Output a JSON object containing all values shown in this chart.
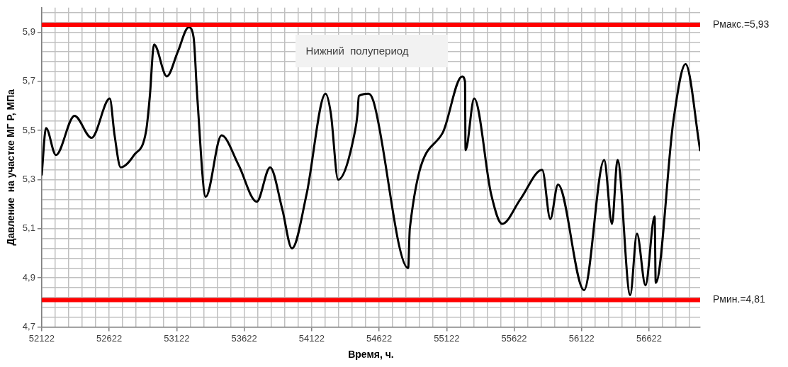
{
  "chart_data": {
    "type": "line",
    "xlabel": "Время, ч.",
    "ylabel": "Давление  на участке МГ Р, МПа",
    "annotations": [
      "Нижний  полупериод"
    ],
    "legend": false,
    "grid": true,
    "marker": "none",
    "line_style": "solid",
    "xlim": [
      52122,
      57000
    ],
    "ylim": [
      4.7,
      6.0
    ],
    "xticks": [
      52122,
      {
        "value": 52222,
        "label": null
      },
      {
        "value": 52322,
        "label": null
      },
      {
        "value": 52422,
        "label": null
      },
      {
        "value": 52522,
        "label": null
      },
      52622,
      {
        "value": 52722,
        "label": null
      },
      {
        "value": 52822,
        "label": null
      },
      {
        "value": 52922,
        "label": null
      },
      {
        "value": 53022,
        "label": null
      },
      53122,
      {
        "value": 53222,
        "label": null
      },
      {
        "value": 53322,
        "label": null
      },
      {
        "value": 53422,
        "label": null
      },
      {
        "value": 53522,
        "label": null
      },
      53622,
      {
        "value": 53722,
        "label": null
      },
      {
        "value": 53822,
        "label": null
      },
      {
        "value": 53922,
        "label": null
      },
      {
        "value": 54022,
        "label": null
      },
      54122,
      {
        "value": 54222,
        "label": null
      },
      {
        "value": 54322,
        "label": null
      },
      {
        "value": 54422,
        "label": null
      },
      {
        "value": 54522,
        "label": null
      },
      54622,
      {
        "value": 54722,
        "label": null
      },
      {
        "value": 54822,
        "label": null
      },
      {
        "value": 54922,
        "label": null
      },
      {
        "value": 55022,
        "label": null
      },
      55122,
      {
        "value": 55222,
        "label": null
      },
      {
        "value": 55322,
        "label": null
      },
      {
        "value": 55422,
        "label": null
      },
      {
        "value": 55522,
        "label": null
      },
      55622,
      {
        "value": 55722,
        "label": null
      },
      {
        "value": 55822,
        "label": null
      },
      {
        "value": 55922,
        "label": null
      },
      {
        "value": 56022,
        "label": null
      },
      56122,
      {
        "value": 56222,
        "label": null
      },
      {
        "value": 56322,
        "label": null
      },
      {
        "value": 56422,
        "label": null
      },
      {
        "value": 56522,
        "label": null
      },
      56622,
      {
        "value": 56722,
        "label": null
      },
      {
        "value": 56822,
        "label": null
      },
      {
        "value": 56922,
        "label": null
      }
    ],
    "yticks": [
      {
        "value": 4.7,
        "label": "4,7"
      },
      {
        "value": 4.74,
        "label": null
      },
      {
        "value": 4.78,
        "label": null
      },
      {
        "value": 4.82,
        "label": null
      },
      {
        "value": 4.86,
        "label": null
      },
      {
        "value": 4.9,
        "label": "4,9"
      },
      {
        "value": 4.94,
        "label": null
      },
      {
        "value": 4.98,
        "label": null
      },
      {
        "value": 5.02,
        "label": null
      },
      {
        "value": 5.06,
        "label": null
      },
      {
        "value": 5.1,
        "label": "5,1"
      },
      {
        "value": 5.14,
        "label": null
      },
      {
        "value": 5.18,
        "label": null
      },
      {
        "value": 5.22,
        "label": null
      },
      {
        "value": 5.26,
        "label": null
      },
      {
        "value": 5.3,
        "label": "5,3"
      },
      {
        "value": 5.34,
        "label": null
      },
      {
        "value": 5.38,
        "label": null
      },
      {
        "value": 5.42,
        "label": null
      },
      {
        "value": 5.46,
        "label": null
      },
      {
        "value": 5.5,
        "label": "5,5"
      },
      {
        "value": 5.54,
        "label": null
      },
      {
        "value": 5.58,
        "label": null
      },
      {
        "value": 5.62,
        "label": null
      },
      {
        "value": 5.66,
        "label": null
      },
      {
        "value": 5.7,
        "label": "5,7"
      },
      {
        "value": 5.74,
        "label": null
      },
      {
        "value": 5.78,
        "label": null
      },
      {
        "value": 5.82,
        "label": null
      },
      {
        "value": 5.86,
        "label": null
      },
      {
        "value": 5.9,
        "label": "5,9"
      },
      {
        "value": 5.94,
        "label": null
      },
      {
        "value": 5.98,
        "label": null
      }
    ],
    "ref_lines": [
      {
        "axis": "y",
        "value": 5.93,
        "label": "Рмакс.=5,93",
        "color": "#ff0000"
      },
      {
        "axis": "y",
        "value": 4.81,
        "label": "Рмин.=4,81",
        "color": "#ff0000"
      }
    ],
    "x": [
      52122,
      52154,
      52227,
      52365,
      52491,
      52626,
      52662,
      52707,
      52806,
      52896,
      52923,
      52954,
      53049,
      53130,
      53211,
      53247,
      53274,
      53337,
      53454,
      53580,
      53715,
      53814,
      53904,
      53976,
      54084,
      54225,
      54264,
      54318,
      54444,
      54462,
      54471,
      54543,
      54579,
      54837,
      54849,
      55092,
      55236,
      55258,
      55262,
      55326,
      55452,
      55533,
      55668,
      55830,
      55890,
      55947,
      56140,
      56289,
      56347,
      56388,
      56482,
      56532,
      56595,
      56663,
      56671,
      56802,
      56892,
      57000
    ],
    "series": [
      {
        "color": "#000000",
        "values": [
          5.32,
          5.51,
          5.4,
          5.56,
          5.47,
          5.63,
          5.48,
          5.35,
          5.4,
          5.5,
          5.64,
          5.85,
          5.72,
          5.82,
          5.92,
          5.88,
          5.64,
          5.23,
          5.48,
          5.36,
          5.21,
          5.35,
          5.18,
          5.02,
          5.24,
          5.65,
          5.57,
          5.3,
          5.5,
          5.57,
          5.64,
          5.65,
          5.62,
          4.94,
          5.1,
          5.49,
          5.72,
          5.7,
          5.42,
          5.63,
          5.24,
          5.12,
          5.22,
          5.34,
          5.14,
          5.28,
          4.85,
          5.38,
          5.12,
          5.38,
          4.83,
          5.08,
          4.87,
          5.15,
          4.88,
          5.54,
          5.77,
          5.42
        ]
      }
    ]
  }
}
